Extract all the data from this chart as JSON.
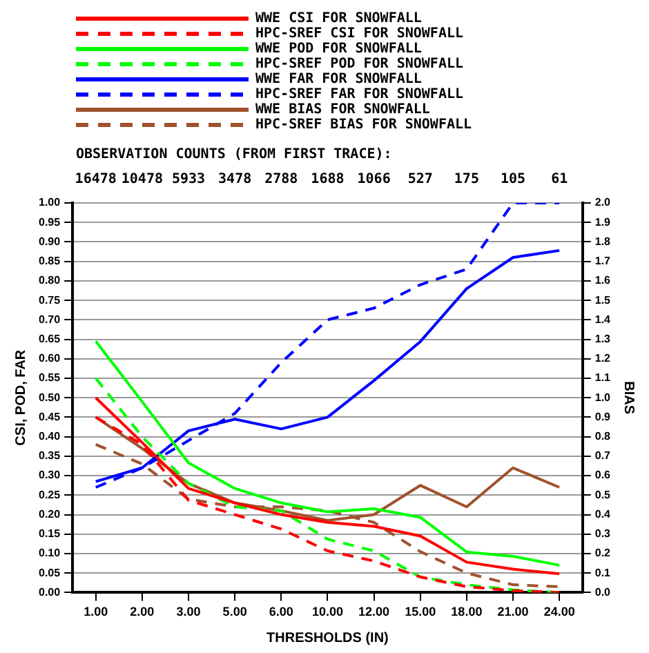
{
  "chart_data": {
    "type": "line",
    "xlabel": "THRESHOLDS (IN)",
    "ylabel": "CSI, POD, FAR",
    "y2label": "BIAS",
    "categories": [
      "1.00",
      "2.00",
      "3.00",
      "5.00",
      "6.00",
      "10.00",
      "12.00",
      "15.00",
      "18.00",
      "21.00",
      "24.00"
    ],
    "series": [
      {
        "name": "WWE CSI FOR SNOWFALL",
        "color": "#ff0000",
        "line_style": "solid",
        "values": [
          0.5,
          0.385,
          0.267,
          0.23,
          0.2,
          0.18,
          0.17,
          0.145,
          0.078,
          0.06,
          0.048
        ]
      },
      {
        "name": "HPC-SREF CSI FOR SNOWFALL",
        "color": "#ff0000",
        "line_style": "dashed",
        "values": [
          0.45,
          0.38,
          0.237,
          0.2,
          0.163,
          0.107,
          0.081,
          0.04,
          0.015,
          0.005,
          0.0
        ]
      },
      {
        "name": "WWE POD FOR SNOWFALL",
        "color": "#00ff00",
        "line_style": "solid",
        "values": [
          0.645,
          0.49,
          0.333,
          0.267,
          0.23,
          0.207,
          0.215,
          0.193,
          0.104,
          0.093,
          0.07
        ]
      },
      {
        "name": "HPC-SREF POD FOR SNOWFALL",
        "color": "#00ff00",
        "line_style": "dashed",
        "values": [
          0.55,
          0.4,
          0.28,
          0.22,
          0.21,
          0.137,
          0.107,
          0.04,
          0.02,
          0.007,
          0.0
        ]
      },
      {
        "name": "WWE FAR FOR SNOWFALL",
        "color": "#0000ff",
        "line_style": "solid",
        "values": [
          0.285,
          0.32,
          0.415,
          0.445,
          0.42,
          0.45,
          0.544,
          0.644,
          0.78,
          0.86,
          0.878
        ]
      },
      {
        "name": "HPC-SREF FAR FOR SNOWFALL",
        "color": "#0000ff",
        "line_style": "dashed",
        "values": [
          0.27,
          0.32,
          0.39,
          0.46,
          0.59,
          0.7,
          0.73,
          0.79,
          0.83,
          1.0,
          1.0
        ]
      },
      {
        "name": "WWE BIAS FOR SNOWFALL",
        "color": "#a0522d",
        "line_style": "solid",
        "axis": "y2",
        "values": [
          0.9,
          0.74,
          0.56,
          0.46,
          0.42,
          0.37,
          0.4,
          0.55,
          0.44,
          0.64,
          0.54
        ]
      },
      {
        "name": "HPC-SREF BIAS FOR SNOWFALL",
        "color": "#a0522d",
        "line_style": "dashed",
        "axis": "y2",
        "values": [
          0.76,
          0.66,
          0.48,
          0.44,
          0.44,
          0.42,
          0.36,
          0.21,
          0.1,
          0.04,
          0.03
        ]
      }
    ],
    "ylim": [
      0,
      1
    ],
    "yticks": [
      {
        "value": 0,
        "label": "0.00"
      },
      0.05,
      {
        "value": 0.1,
        "label": "0.10"
      },
      0.15,
      {
        "value": 0.2,
        "label": "0.20"
      },
      0.25,
      {
        "value": 0.3,
        "label": "0.30"
      },
      0.35,
      {
        "value": 0.4,
        "label": "0.40"
      },
      0.45,
      {
        "value": 0.5,
        "label": "0.50"
      },
      0.55,
      {
        "value": 0.6,
        "label": "0.60"
      },
      0.65,
      {
        "value": 0.7,
        "label": "0.70"
      },
      0.75,
      {
        "value": 0.8,
        "label": "0.80"
      },
      0.85,
      {
        "value": 0.9,
        "label": "0.90"
      },
      0.95,
      {
        "value": 1,
        "label": "1.00"
      }
    ],
    "y2lim": [
      0,
      2
    ],
    "y2ticks": [
      {
        "value": 0,
        "label": "0.0"
      },
      0.1,
      0.2,
      0.3,
      0.4,
      0.5,
      0.6,
      0.7,
      0.8,
      0.9,
      {
        "value": 1,
        "label": "1.0"
      },
      1.1,
      1.2,
      1.3,
      1.4,
      1.5,
      1.6,
      1.7,
      1.8,
      1.9,
      {
        "value": 2,
        "label": "2.0"
      }
    ],
    "annotations": [
      "OBSERVATION COUNTS (FROM FIRST TRACE):",
      "16478",
      "10478",
      "5933",
      "3478",
      "2788",
      "1688",
      "1066",
      "527",
      "175",
      "105",
      "61"
    ],
    "grid": "y",
    "legend": "top",
    "marker": "none"
  }
}
